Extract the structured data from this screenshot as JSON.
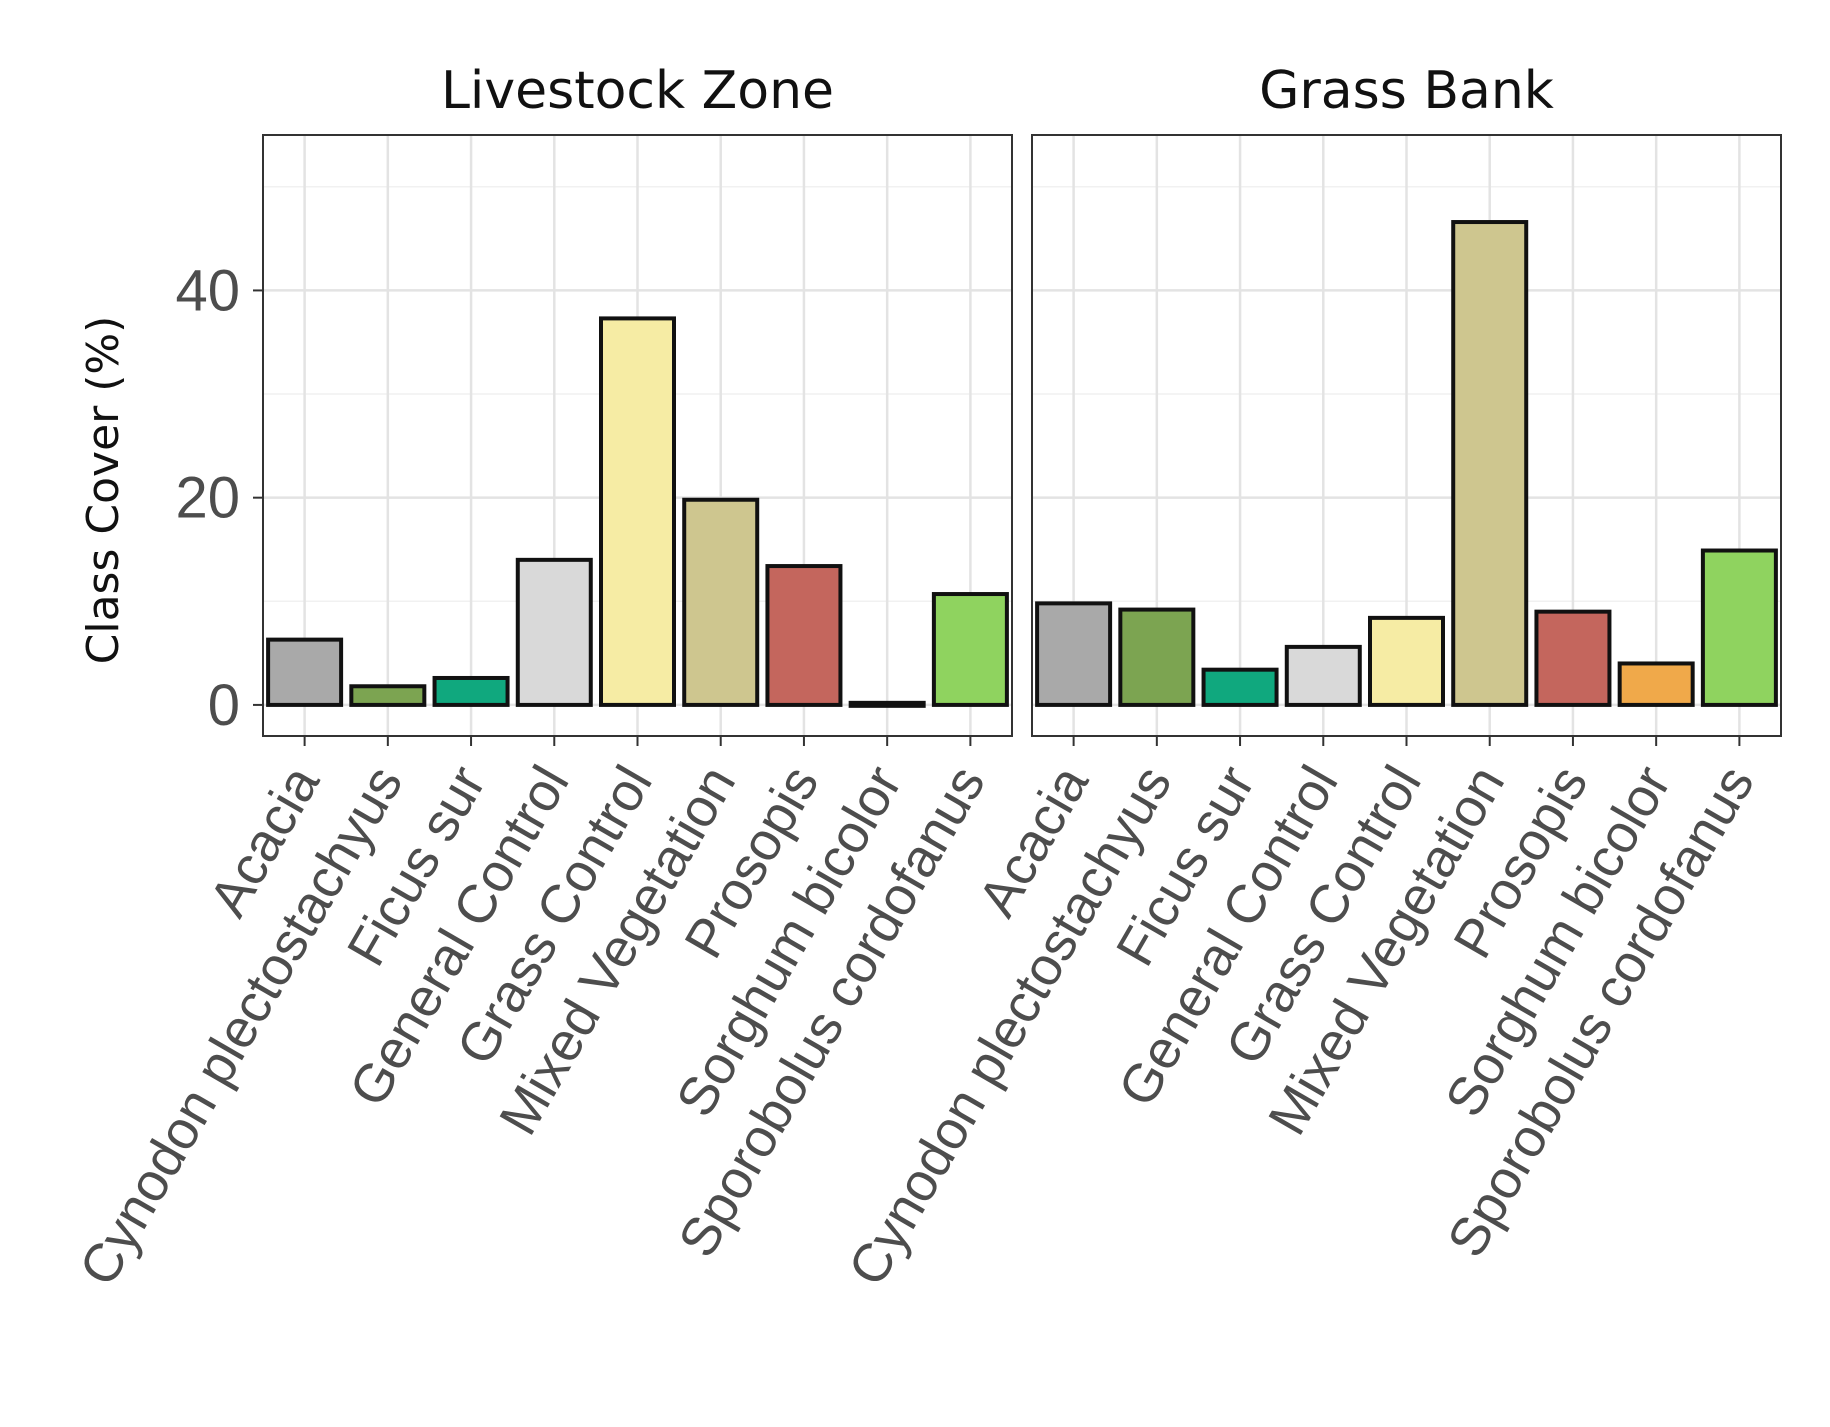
{
  "chart_data": {
    "type": "bar",
    "ylabel": "Class Cover (%)",
    "ylim": [
      -3,
      55
    ],
    "yticks": [
      0,
      20,
      40
    ],
    "grid": true,
    "categories": [
      "Acacia",
      "Cynodon plectostachyus",
      "Ficus sur",
      "General Control",
      "Grass Control",
      "Mixed Vegetation",
      "Prosopis",
      "Sorghum bicolor",
      "Sporobolus cordofanus"
    ],
    "colors": [
      "#a9a9a9",
      "#7ca451",
      "#10a87e",
      "#d9d9d9",
      "#f6eca4",
      "#cec68f",
      "#c4665d",
      "#f0a94a",
      "#8fd35f"
    ],
    "panels": [
      {
        "title": "Livestock Zone",
        "values": [
          6.3,
          1.8,
          2.6,
          14.0,
          37.3,
          19.8,
          13.4,
          0.2,
          10.7
        ]
      },
      {
        "title": "Grass Bank",
        "values": [
          9.8,
          9.2,
          3.4,
          5.6,
          8.4,
          46.6,
          9.0,
          4.0,
          14.9
        ]
      }
    ]
  }
}
